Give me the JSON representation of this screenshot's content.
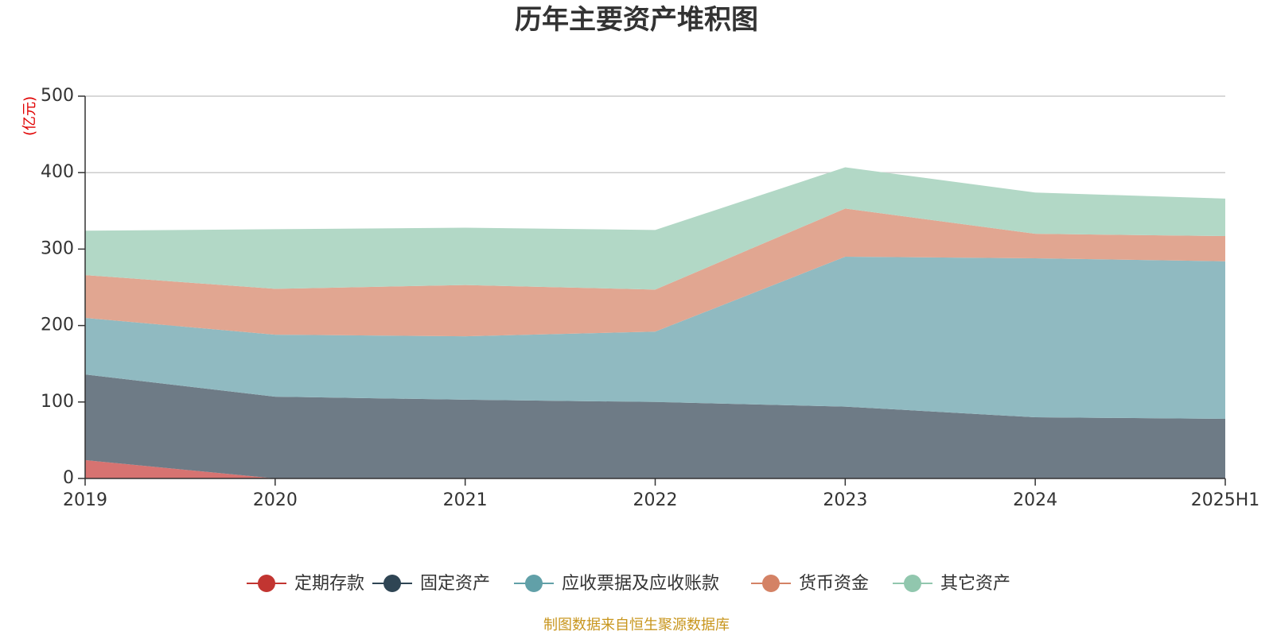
{
  "chart_data": {
    "type": "area",
    "stacked": true,
    "title": "历年主要资产堆积图",
    "unit": "(亿元)",
    "categories": [
      "2019",
      "2020",
      "2021",
      "2022",
      "2023",
      "2024",
      "2025H1"
    ],
    "ylim": [
      0,
      500
    ],
    "yticks": [
      0,
      100,
      200,
      300,
      400,
      500
    ],
    "grid": true,
    "legend_position": "bottom-center",
    "series": [
      {
        "name": "定期存款",
        "color": "#c23531",
        "fill": "#d77371",
        "values": [
          24,
          0,
          0,
          0,
          0,
          0,
          0
        ]
      },
      {
        "name": "固定资产",
        "color": "#2f4554",
        "fill": "#6e7b86",
        "values": [
          112,
          107,
          103,
          100,
          94,
          80,
          78
        ]
      },
      {
        "name": "应收票据及应收账款",
        "color": "#61a0a8",
        "fill": "#90bac1",
        "values": [
          74,
          81,
          83,
          92,
          196,
          208,
          206
        ]
      },
      {
        "name": "货币资金",
        "color": "#d48265",
        "fill": "#e1a691",
        "values": [
          56,
          60,
          67,
          55,
          63,
          32,
          33
        ]
      },
      {
        "name": "其它资产",
        "color": "#91c7ae",
        "fill": "#b2d8c6",
        "values": [
          58,
          78,
          75,
          78,
          54,
          54,
          49
        ]
      }
    ]
  },
  "source_text": "制图数据来自恒生聚源数据库",
  "colors": {
    "unit_label": "#e00000",
    "source_label": "#c8961e",
    "axis": "#333333",
    "grid": "#cccccc"
  }
}
